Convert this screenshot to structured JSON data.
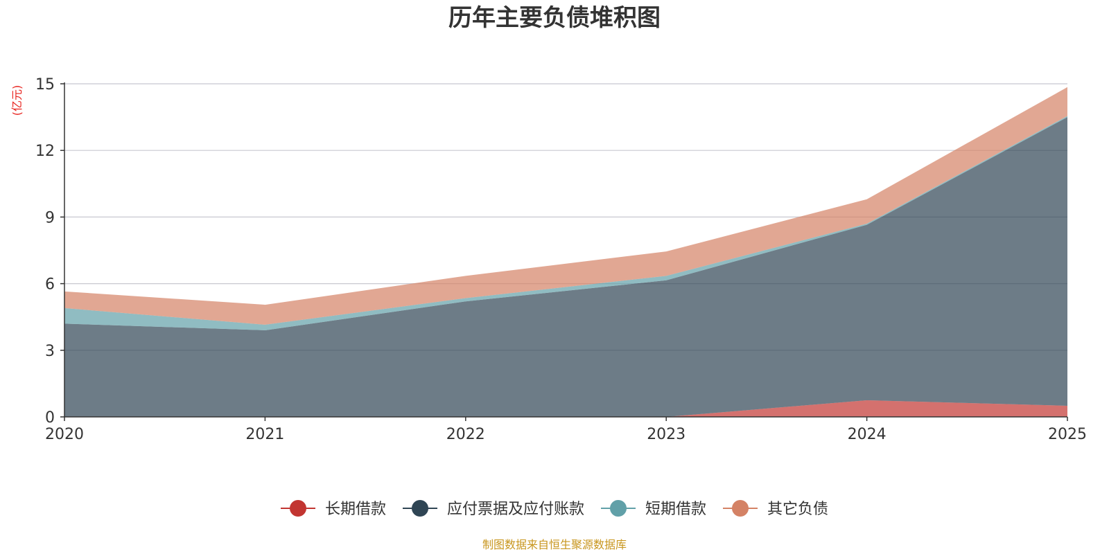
{
  "chart_data": {
    "type": "area",
    "stacked": true,
    "title": "历年主要负债堆积图",
    "ylabel": "(亿元)",
    "xlabel": "",
    "x": [
      "2020",
      "2021",
      "2022",
      "2023",
      "2024",
      "2025"
    ],
    "ylim": [
      0,
      15
    ],
    "yticks": [
      0,
      3,
      6,
      9,
      12,
      15
    ],
    "grid": true,
    "legend_position": "bottom-center",
    "series": [
      {
        "name": "长期借款",
        "color": "#c23531",
        "values": [
          0,
          0,
          0,
          0,
          0.75,
          0.5
        ]
      },
      {
        "name": "应付票据及应付账款",
        "color": "#2f4554",
        "values": [
          4.2,
          3.9,
          5.2,
          6.15,
          7.9,
          13.0
        ]
      },
      {
        "name": "短期借款",
        "color": "#61a0a8",
        "values": [
          0.7,
          0.25,
          0.15,
          0.2,
          0.05,
          0.05
        ]
      },
      {
        "name": "其它负债",
        "color": "#d48265",
        "values": [
          0.75,
          0.9,
          1.0,
          1.1,
          1.1,
          1.3
        ]
      }
    ],
    "source": "制图数据来自恒生聚源数据库"
  }
}
